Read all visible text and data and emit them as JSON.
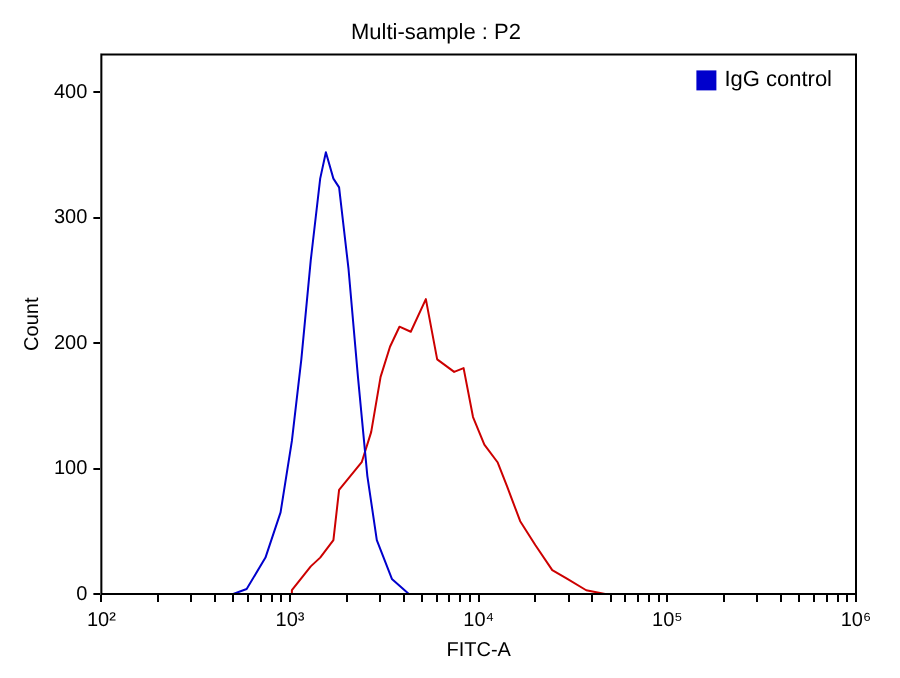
{
  "chart_data": {
    "type": "line",
    "title": "Multi-sample : P2",
    "xlabel": "FITC-A",
    "ylabel": "Count",
    "log": "x",
    "grid": false,
    "legend": "top right",
    "marker": "none",
    "line_style": "solid",
    "xlim": [
      100,
      1000000
    ],
    "xticks": [
      {
        "value": 100,
        "label": "10²"
      },
      {
        "value": 200,
        "label": null
      },
      {
        "value": 300,
        "label": null
      },
      {
        "value": 400,
        "label": null
      },
      {
        "value": 500,
        "label": null
      },
      {
        "value": 600,
        "label": null
      },
      {
        "value": 700,
        "label": null
      },
      {
        "value": 800,
        "label": null
      },
      {
        "value": 900,
        "label": null
      },
      {
        "value": 1000,
        "label": "10³"
      },
      {
        "value": 2000,
        "label": null
      },
      {
        "value": 3000,
        "label": null
      },
      {
        "value": 4000,
        "label": null
      },
      {
        "value": 5000,
        "label": null
      },
      {
        "value": 6000,
        "label": null
      },
      {
        "value": 7000,
        "label": null
      },
      {
        "value": 8000,
        "label": null
      },
      {
        "value": 9000,
        "label": null
      },
      {
        "value": 10000,
        "label": "10⁴"
      },
      {
        "value": 20000,
        "label": null
      },
      {
        "value": 30000,
        "label": null
      },
      {
        "value": 40000,
        "label": null
      },
      {
        "value": 50000,
        "label": null
      },
      {
        "value": 60000,
        "label": null
      },
      {
        "value": 70000,
        "label": null
      },
      {
        "value": 80000,
        "label": null
      },
      {
        "value": 90000,
        "label": null
      },
      {
        "value": 100000,
        "label": "10⁵"
      },
      {
        "value": 200000,
        "label": null
      },
      {
        "value": 300000,
        "label": null
      },
      {
        "value": 400000,
        "label": null
      },
      {
        "value": 500000,
        "label": null
      },
      {
        "value": 600000,
        "label": null
      },
      {
        "value": 700000,
        "label": null
      },
      {
        "value": 800000,
        "label": null
      },
      {
        "value": 900000,
        "label": null
      },
      {
        "value": 1000000,
        "label": "10⁶"
      }
    ],
    "ylim": [
      0,
      430
    ],
    "yticks": [
      0,
      100,
      200,
      300,
      400
    ],
    "series": [
      {
        "name": "IgG control",
        "color": "#0000cc",
        "x": [
          500,
          589,
          741,
          891,
          1023,
          1148,
          1288,
          1445,
          1549,
          1698,
          1820,
          2042,
          2291,
          2570,
          2884,
          3467,
          4266
        ],
        "values": [
          0,
          4,
          29,
          65,
          122,
          187,
          266,
          331,
          352,
          331,
          324,
          259,
          173,
          94,
          43,
          12,
          0
        ]
      },
      {
        "color": "#cc0000",
        "x": [
          1000,
          1023,
          1288,
          1445,
          1698,
          1820,
          2399,
          2692,
          3020,
          3388,
          3802,
          4365,
          5248,
          6026,
          7413,
          8318,
          9333,
          10715,
          12589,
          14125,
          16596,
          19953,
          24547,
          29512,
          37154,
          46774
        ],
        "values": [
          0,
          3,
          22,
          29,
          43,
          83,
          105,
          129,
          173,
          197,
          213,
          209,
          235,
          187,
          177,
          180,
          141,
          119,
          105,
          86,
          58,
          39,
          19,
          12,
          3,
          0
        ]
      }
    ]
  }
}
